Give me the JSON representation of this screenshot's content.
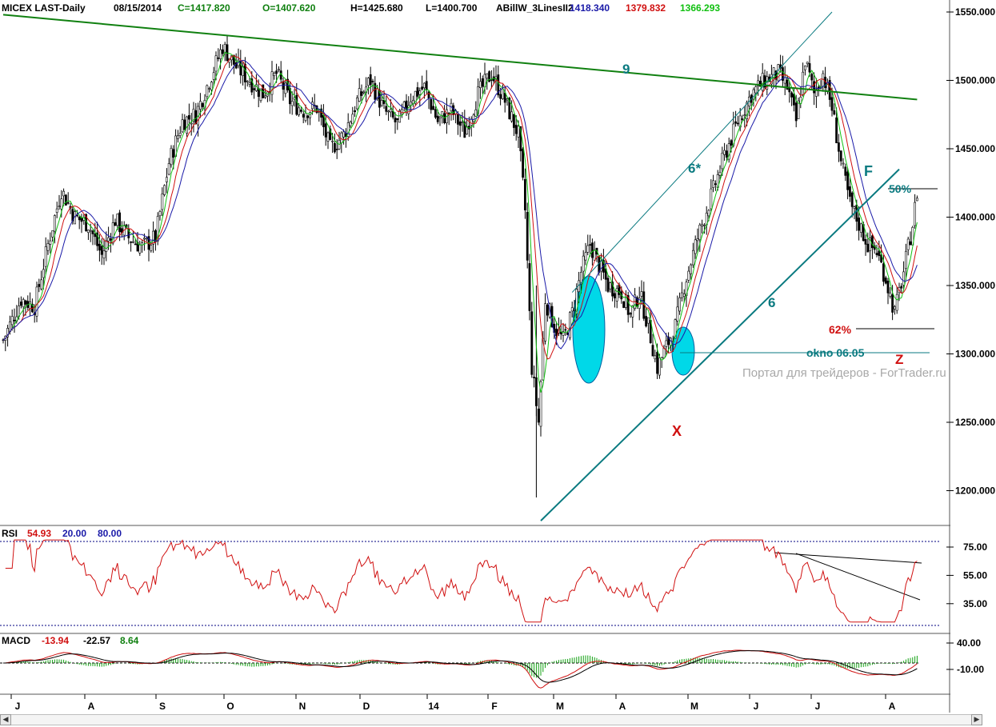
{
  "header": {
    "symbol": "MICEX LAST-Daily",
    "date": "08/15/2014",
    "close": "C=1417.820",
    "open": "O=1407.620",
    "high": "H=1425.680",
    "low": "L=1400.700",
    "indicator": "ABillW_3LinesII2",
    "line1": "1418.340",
    "line2": "1379.832",
    "line3": "1366.293"
  },
  "colors": {
    "up_candle": "#ffffff",
    "down_candle": "#000000",
    "ma_blue": "#1a1aa8",
    "ma_red": "#d01010",
    "ma_green": "#10c010",
    "trend_green": "#108010",
    "trend_teal": "#0a7a80",
    "ellipse": "#00d8e8",
    "rsi_line": "#d01010",
    "macd_line": "#d01010",
    "signal_line": "#000000",
    "hist": "#10a010",
    "level_dashed": "#000080"
  },
  "chart_data": {
    "type": "candlestick",
    "x_months": [
      "J",
      "A",
      "S",
      "O",
      "N",
      "D",
      "14",
      "F",
      "M",
      "A",
      "M",
      "J",
      "J",
      "A"
    ],
    "y_ticks": [
      "1550.000",
      "1500.000",
      "1450.000",
      "1400.000",
      "1350.000",
      "1300.000",
      "1250.000",
      "1200.000"
    ],
    "ylim": [
      1180,
      1560
    ],
    "price_path": [
      {
        "t": 0,
        "p": 1310
      },
      {
        "t": 8,
        "p": 1340
      },
      {
        "t": 14,
        "p": 1335
      },
      {
        "t": 20,
        "p": 1380
      },
      {
        "t": 26,
        "p": 1420
      },
      {
        "t": 32,
        "p": 1400
      },
      {
        "t": 38,
        "p": 1395
      },
      {
        "t": 44,
        "p": 1372
      },
      {
        "t": 50,
        "p": 1398
      },
      {
        "t": 56,
        "p": 1385
      },
      {
        "t": 62,
        "p": 1378
      },
      {
        "t": 68,
        "p": 1385
      },
      {
        "t": 74,
        "p": 1440
      },
      {
        "t": 80,
        "p": 1470
      },
      {
        "t": 86,
        "p": 1475
      },
      {
        "t": 92,
        "p": 1500
      },
      {
        "t": 98,
        "p": 1525
      },
      {
        "t": 104,
        "p": 1510
      },
      {
        "t": 110,
        "p": 1500
      },
      {
        "t": 116,
        "p": 1490
      },
      {
        "t": 122,
        "p": 1505
      },
      {
        "t": 128,
        "p": 1485
      },
      {
        "t": 134,
        "p": 1478
      },
      {
        "t": 140,
        "p": 1480
      },
      {
        "t": 146,
        "p": 1450
      },
      {
        "t": 152,
        "p": 1460
      },
      {
        "t": 158,
        "p": 1485
      },
      {
        "t": 164,
        "p": 1500
      },
      {
        "t": 170,
        "p": 1478
      },
      {
        "t": 176,
        "p": 1468
      },
      {
        "t": 182,
        "p": 1488
      },
      {
        "t": 188,
        "p": 1495
      },
      {
        "t": 194,
        "p": 1470
      },
      {
        "t": 200,
        "p": 1478
      },
      {
        "t": 206,
        "p": 1462
      },
      {
        "t": 212,
        "p": 1490
      },
      {
        "t": 218,
        "p": 1505
      },
      {
        "t": 224,
        "p": 1485
      },
      {
        "t": 230,
        "p": 1460
      },
      {
        "t": 233,
        "p": 1405
      },
      {
        "t": 236,
        "p": 1290
      },
      {
        "t": 239,
        "p": 1250
      },
      {
        "t": 242,
        "p": 1340
      },
      {
        "t": 246,
        "p": 1320
      },
      {
        "t": 250,
        "p": 1310
      },
      {
        "t": 254,
        "p": 1330
      },
      {
        "t": 258,
        "p": 1360
      },
      {
        "t": 262,
        "p": 1380
      },
      {
        "t": 266,
        "p": 1365
      },
      {
        "t": 270,
        "p": 1350
      },
      {
        "t": 276,
        "p": 1345
      },
      {
        "t": 280,
        "p": 1328
      },
      {
        "t": 284,
        "p": 1345
      },
      {
        "t": 288,
        "p": 1320
      },
      {
        "t": 292,
        "p": 1290
      },
      {
        "t": 296,
        "p": 1305
      },
      {
        "t": 300,
        "p": 1320
      },
      {
        "t": 304,
        "p": 1350
      },
      {
        "t": 310,
        "p": 1385
      },
      {
        "t": 316,
        "p": 1415
      },
      {
        "t": 322,
        "p": 1445
      },
      {
        "t": 328,
        "p": 1470
      },
      {
        "t": 334,
        "p": 1490
      },
      {
        "t": 340,
        "p": 1500
      },
      {
        "t": 346,
        "p": 1505
      },
      {
        "t": 350,
        "p": 1495
      },
      {
        "t": 354,
        "p": 1470
      },
      {
        "t": 358,
        "p": 1515
      },
      {
        "t": 362,
        "p": 1490
      },
      {
        "t": 366,
        "p": 1505
      },
      {
        "t": 370,
        "p": 1480
      },
      {
        "t": 374,
        "p": 1440
      },
      {
        "t": 378,
        "p": 1410
      },
      {
        "t": 382,
        "p": 1395
      },
      {
        "t": 386,
        "p": 1380
      },
      {
        "t": 390,
        "p": 1375
      },
      {
        "t": 394,
        "p": 1355
      },
      {
        "t": 398,
        "p": 1330
      },
      {
        "t": 402,
        "p": 1360
      },
      {
        "t": 406,
        "p": 1395
      },
      {
        "t": 408,
        "p": 1418
      }
    ],
    "trendlines": [
      {
        "label": "9",
        "from": [
          0,
          1548
        ],
        "to": [
          408,
          1486
        ]
      },
      {
        "label": "6",
        "from": [
          240,
          1178
        ],
        "to": [
          400,
          1435
        ]
      },
      {
        "label": "6*",
        "from": [
          254,
          1345
        ],
        "to": [
          370,
          1550
        ]
      }
    ],
    "annotations": {
      "fib_50": "50%",
      "fib_62": "62%",
      "okno": "okno 06.05",
      "point_x": "X",
      "point_z": "Z",
      "point_f": "F",
      "watermark": "Портал для трейдеров - ForTrader.ru"
    },
    "rsi": {
      "label": "RSI",
      "value": "54.93",
      "low": "20.00",
      "high": "80.00",
      "ticks": [
        "75.00",
        "55.00",
        "35.00"
      ]
    },
    "macd": {
      "label": "MACD",
      "v1": "-13.94",
      "v2": "-22.57",
      "v3": "8.64",
      "ticks": [
        "40.00",
        "-10.00"
      ]
    }
  }
}
